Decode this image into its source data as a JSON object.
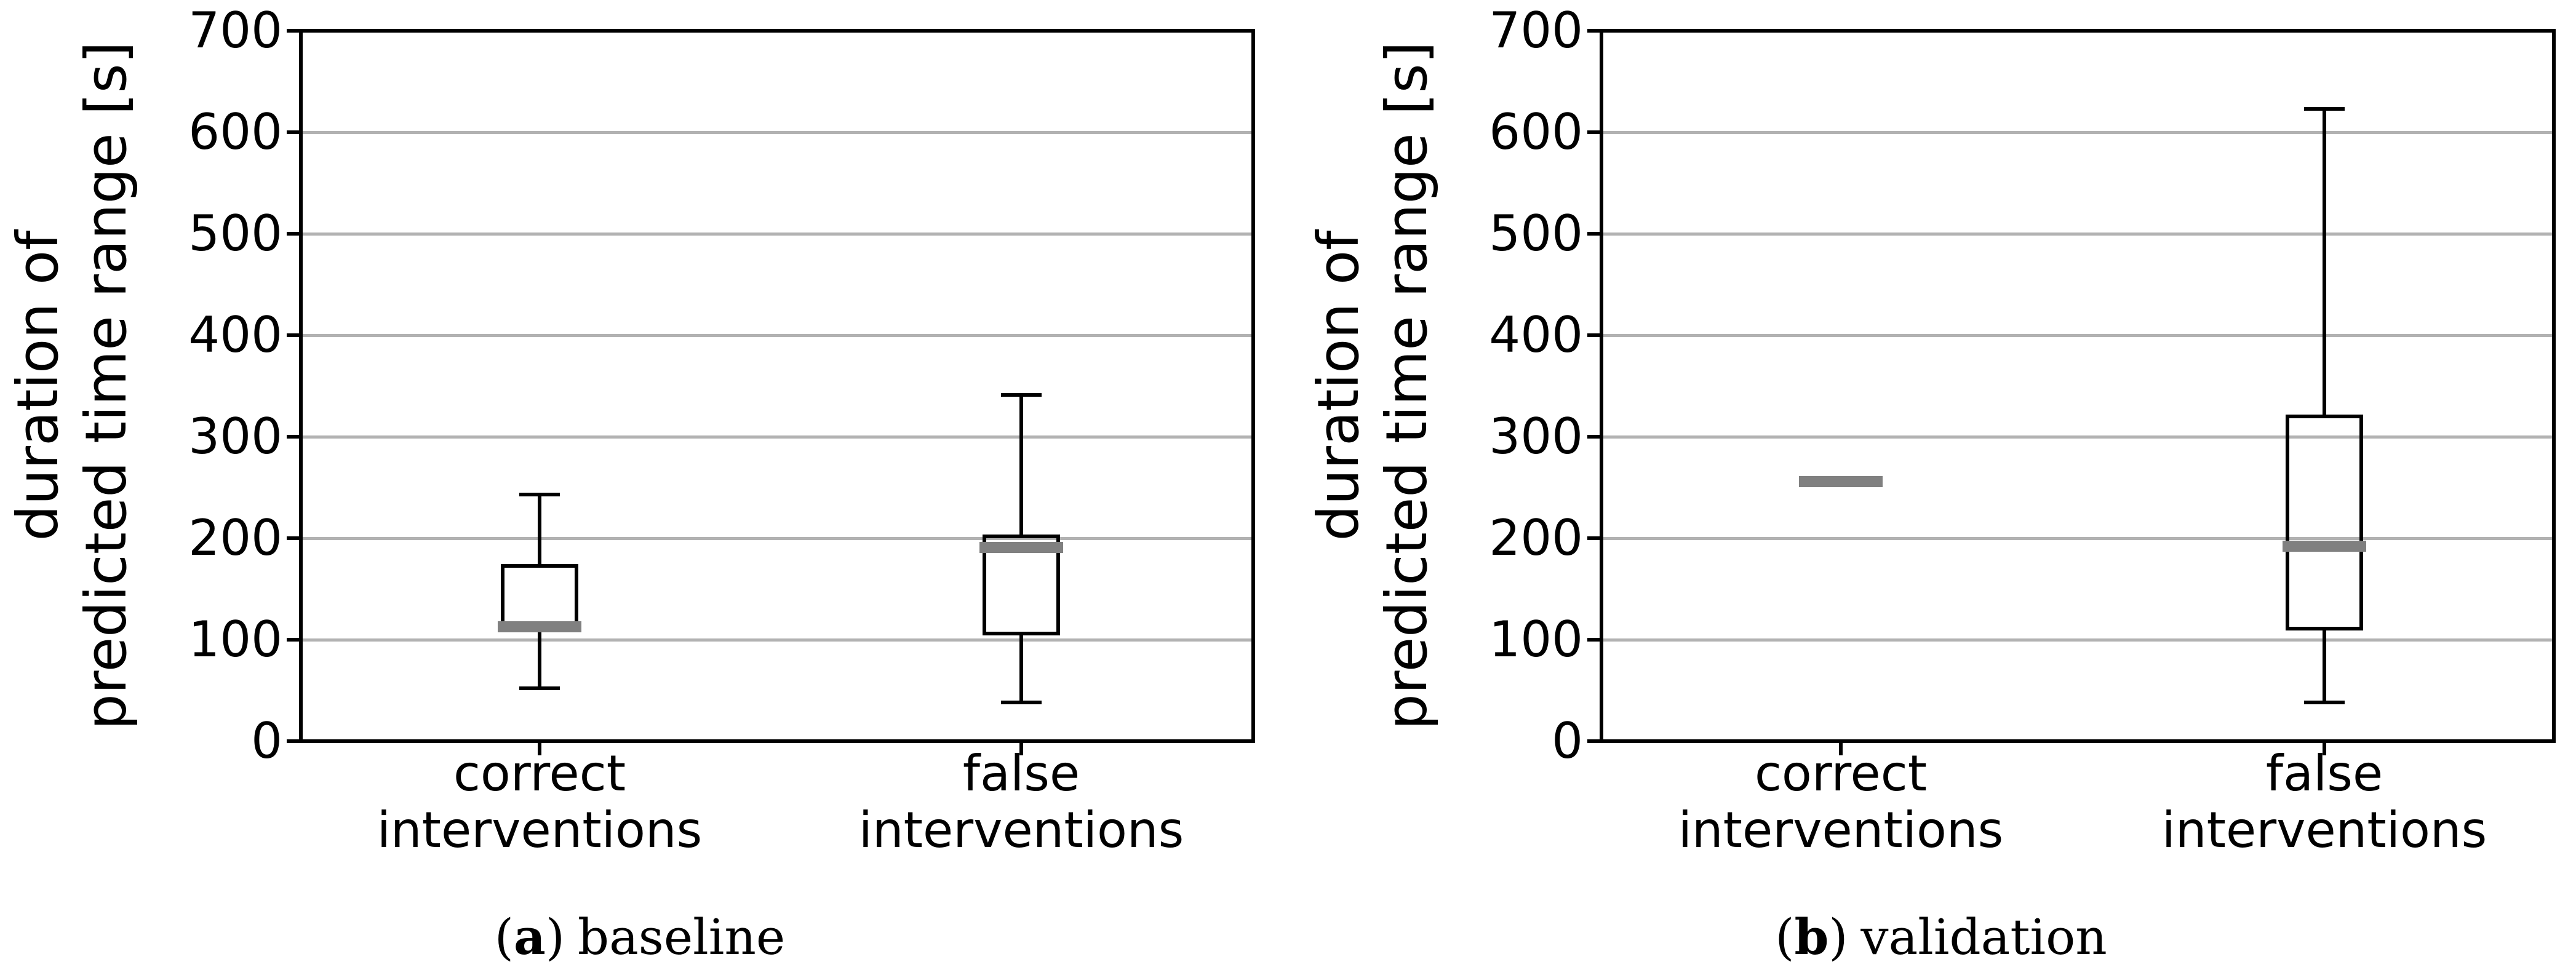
{
  "colors": {
    "background": "#ffffff",
    "box_line": "#000000",
    "median": "#808080",
    "gridline": "#b2b2b2",
    "text": "#000000"
  },
  "captions": {
    "a": {
      "open": "(",
      "letter": "a",
      "close": ")",
      "text": "baseline"
    },
    "b": {
      "open": "(",
      "letter": "b",
      "close": ")",
      "text": "validation"
    }
  },
  "chart_data": [
    {
      "type": "boxplot",
      "panel": "a",
      "caption": "(a) baseline",
      "ylabel": [
        "duration of",
        "predicted time range [s]"
      ],
      "ylim": [
        0,
        700
      ],
      "yticks": [
        0,
        100,
        200,
        300,
        400,
        500,
        600,
        700
      ],
      "grid_values": [
        100,
        200,
        300,
        400,
        500,
        600
      ],
      "grid": "horizontal",
      "legend": "none",
      "categories": [
        [
          "correct",
          "interventions"
        ],
        [
          "false",
          "interventions"
        ]
      ],
      "boxes": [
        {
          "label": "correct interventions",
          "whisker_low": 52,
          "q1": 112,
          "median": 113,
          "q3": 173,
          "whisker_high": 243,
          "median_only": false
        },
        {
          "label": "false interventions",
          "whisker_low": 38,
          "q1": 106,
          "median": 191,
          "q3": 202,
          "whisker_high": 341,
          "median_only": false
        }
      ]
    },
    {
      "type": "boxplot",
      "panel": "b",
      "caption": "(b) validation",
      "ylabel": [
        "duration of",
        "predicted time range [s]"
      ],
      "ylim": [
        0,
        700
      ],
      "yticks": [
        0,
        100,
        200,
        300,
        400,
        500,
        600,
        700
      ],
      "grid_values": [
        100,
        200,
        300,
        400,
        500,
        600
      ],
      "grid": "horizontal",
      "legend": "none",
      "categories": [
        [
          "correct",
          "interventions"
        ],
        [
          "false",
          "interventions"
        ]
      ],
      "boxes": [
        {
          "label": "correct interventions",
          "median": 256,
          "median_only": true
        },
        {
          "label": "false interventions",
          "whisker_low": 38,
          "q1": 111,
          "median": 192,
          "q3": 320,
          "whisker_high": 623,
          "median_only": false
        }
      ]
    }
  ]
}
